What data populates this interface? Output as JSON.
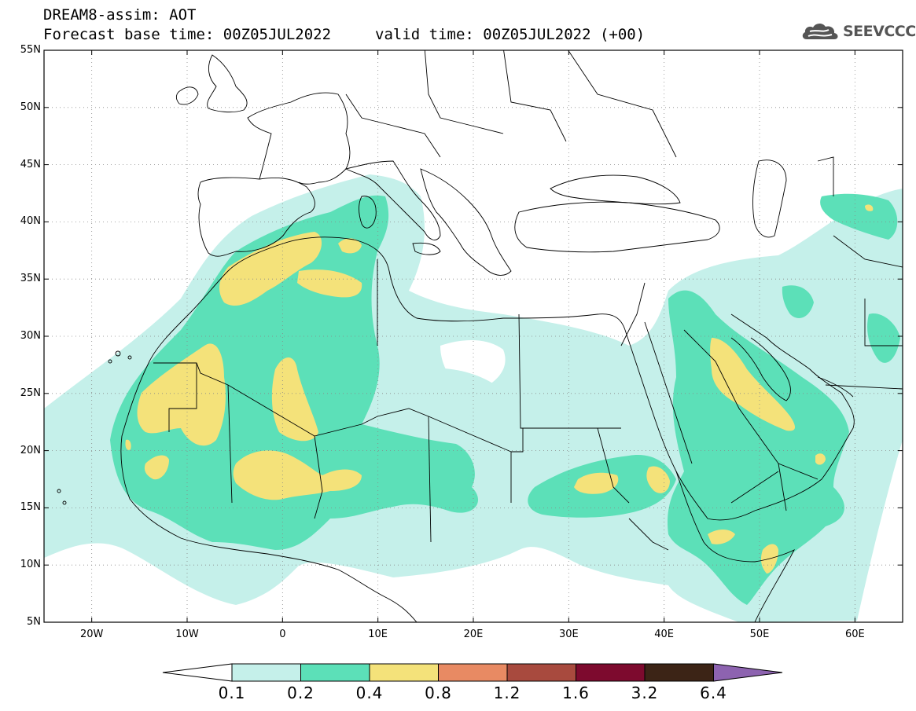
{
  "header": {
    "title": "DREAM8-assim: AOT",
    "base_time": "Forecast base time: 00Z05JUL2022",
    "valid_time": "valid time: 00Z05JUL2022 (+00)"
  },
  "logo": {
    "text": "SEEVCCC",
    "icon": "cloud-icon"
  },
  "map": {
    "lon_range": [
      -25,
      65
    ],
    "lat_range": [
      5,
      55
    ],
    "lat_labels": [
      "55N",
      "50N",
      "45N",
      "40N",
      "35N",
      "30N",
      "25N",
      "20N",
      "15N",
      "10N",
      "5N"
    ],
    "lat_values": [
      55,
      50,
      45,
      40,
      35,
      30,
      25,
      20,
      15,
      10,
      5
    ],
    "lon_labels": [
      "20W",
      "10W",
      "0",
      "10E",
      "20E",
      "30E",
      "40E",
      "50E",
      "60E"
    ],
    "lon_values": [
      -20,
      -10,
      0,
      10,
      20,
      30,
      40,
      50,
      60
    ],
    "gridlines": "dotted",
    "colors": {
      "c1": "#c5f0ea",
      "c2": "#5ce0b8",
      "c3": "#f4e27a"
    }
  },
  "colorbar": {
    "labels": [
      "0.1",
      "0.2",
      "0.4",
      "0.8",
      "1.2",
      "1.6",
      "3.2",
      "6.4"
    ],
    "colors": [
      "#ffffff",
      "#c5f0ea",
      "#5ce0b8",
      "#f4e27a",
      "#e88a63",
      "#a84a3e",
      "#7d0a2e",
      "#3c2416",
      "#8d63b0"
    ]
  }
}
